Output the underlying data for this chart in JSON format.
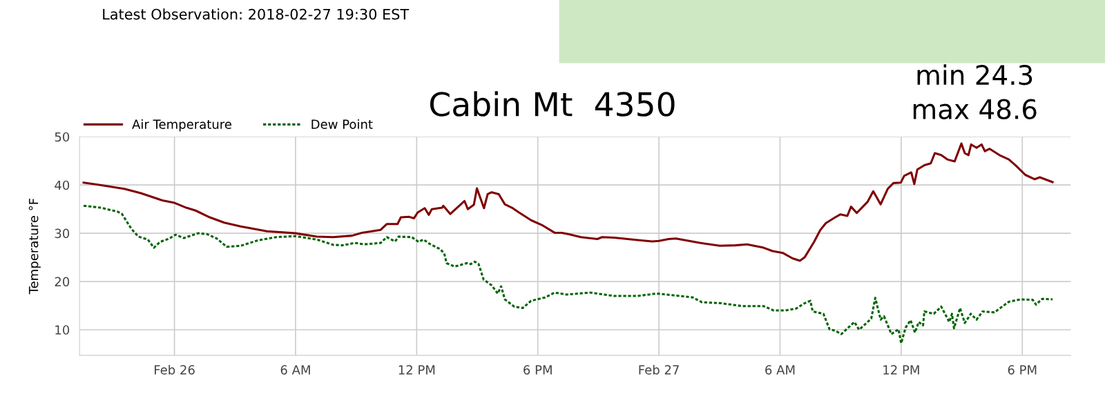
{
  "chart_data": {
    "type": "line",
    "title": "Cabin Mt  4350",
    "ylabel": "Temperature °F",
    "annotations": [
      "Latest Observation: 2018-02-27 19:30 EST",
      "min 24.3",
      "max 48.6"
    ],
    "xlim": [
      "2018-02-25T19:18",
      "2018-02-27T20:24"
    ],
    "ylim": [
      4.7,
      50
    ],
    "xticks": [
      {
        "value": "2018-02-26T00:00",
        "label": "Feb 26"
      },
      {
        "value": "2018-02-26T06:00",
        "label": "6 AM"
      },
      {
        "value": "2018-02-26T12:00",
        "label": "12 PM"
      },
      {
        "value": "2018-02-26T18:00",
        "label": "6 PM"
      },
      {
        "value": "2018-02-27T00:00",
        "label": "Feb 27"
      },
      {
        "value": "2018-02-27T06:00",
        "label": "6 AM"
      },
      {
        "value": "2018-02-27T12:00",
        "label": "12 PM"
      },
      {
        "value": "2018-02-27T18:00",
        "label": "6 PM"
      }
    ],
    "yticks": [
      10,
      20,
      30,
      40,
      50
    ],
    "grid": true,
    "legend": "top left",
    "marker": "none",
    "series": [
      {
        "name": "Air Temperature",
        "color": "#800000",
        "line_style": "solid",
        "x": [
          "2018-02-25T19:30",
          "2018-02-25T20:20",
          "2018-02-25T21:31",
          "2018-02-25T22:20",
          "2018-02-25T23:24",
          "2018-02-26T00:00",
          "2018-02-26T00:35",
          "2018-02-26T01:03",
          "2018-02-26T01:45",
          "2018-02-26T02:28",
          "2018-02-26T03:17",
          "2018-02-26T04:35",
          "2018-02-26T06:00",
          "2018-02-26T07:03",
          "2018-02-26T07:52",
          "2018-02-26T08:48",
          "2018-02-26T09:17",
          "2018-02-26T10:13",
          "2018-02-26T10:31",
          "2018-02-26T11:03",
          "2018-02-26T11:13",
          "2018-02-26T11:38",
          "2018-02-26T11:52",
          "2018-02-26T12:03",
          "2018-02-26T12:24",
          "2018-02-26T12:36",
          "2018-02-26T12:45",
          "2018-02-26T13:16",
          "2018-02-26T13:19",
          "2018-02-26T13:40",
          "2018-02-26T14:22",
          "2018-02-26T14:32",
          "2018-02-26T14:50",
          "2018-02-26T14:59",
          "2018-02-26T15:20",
          "2018-02-26T15:31",
          "2018-02-26T15:43",
          "2018-02-26T16:04",
          "2018-02-26T16:22",
          "2018-02-26T16:43",
          "2018-02-26T17:04",
          "2018-02-26T17:40",
          "2018-02-26T18:15",
          "2018-02-26T18:50",
          "2018-02-26T19:11",
          "2018-02-26T19:32",
          "2018-02-26T20:08",
          "2018-02-26T20:57",
          "2018-02-26T21:11",
          "2018-02-26T21:47",
          "2018-02-26T22:57",
          "2018-02-26T23:40",
          "2018-02-27T00:00",
          "2018-02-27T00:29",
          "2018-02-27T00:50",
          "2018-02-27T02:01",
          "2018-02-27T03:01",
          "2018-02-27T03:47",
          "2018-02-27T04:22",
          "2018-02-27T05:11",
          "2018-02-27T05:38",
          "2018-02-27T06:09",
          "2018-02-27T06:37",
          "2018-02-27T06:59",
          "2018-02-27T07:13",
          "2018-02-27T07:41",
          "2018-02-27T07:59",
          "2018-02-27T08:16",
          "2018-02-27T08:44",
          "2018-02-27T08:59",
          "2018-02-27T09:20",
          "2018-02-27T09:31",
          "2018-02-27T09:48",
          "2018-02-27T10:20",
          "2018-02-27T10:37",
          "2018-02-27T10:59",
          "2018-02-27T11:20",
          "2018-02-27T11:37",
          "2018-02-27T11:59",
          "2018-02-27T12:09",
          "2018-02-27T12:30",
          "2018-02-27T12:39",
          "2018-02-27T12:48",
          "2018-02-27T13:09",
          "2018-02-27T13:28",
          "2018-02-27T13:40",
          "2018-02-27T13:59",
          "2018-02-27T14:17",
          "2018-02-27T14:39",
          "2018-02-27T14:59",
          "2018-02-27T15:09",
          "2018-02-27T15:20",
          "2018-02-27T15:28",
          "2018-02-27T15:44",
          "2018-02-27T15:59",
          "2018-02-27T16:09",
          "2018-02-27T16:23",
          "2018-02-27T16:52",
          "2018-02-27T17:20",
          "2018-02-27T17:41",
          "2018-02-27T18:09",
          "2018-02-27T18:37",
          "2018-02-27T18:52",
          "2018-02-27T19:30"
        ],
        "values": [
          40.5,
          40.0,
          39.2,
          38.3,
          36.8,
          36.3,
          35.3,
          34.7,
          33.3,
          32.2,
          31.4,
          30.4,
          30.0,
          29.3,
          29.2,
          29.5,
          30.1,
          30.7,
          31.9,
          31.9,
          33.3,
          33.4,
          33.1,
          34.3,
          35.2,
          33.8,
          35.0,
          35.3,
          35.7,
          34.0,
          36.7,
          35.0,
          35.9,
          39.3,
          35.2,
          38.1,
          38.5,
          38.1,
          36.0,
          35.3,
          34.3,
          32.7,
          31.6,
          30.1,
          30.1,
          29.8,
          29.2,
          28.8,
          29.2,
          29.1,
          28.6,
          28.3,
          28.4,
          28.8,
          28.9,
          28.0,
          27.4,
          27.5,
          27.7,
          27.0,
          26.3,
          25.9,
          24.8,
          24.3,
          25.0,
          28.2,
          30.6,
          32.1,
          33.3,
          33.9,
          33.6,
          35.5,
          34.2,
          36.5,
          38.7,
          36.0,
          39.2,
          40.4,
          40.5,
          41.9,
          42.6,
          40.2,
          43.2,
          44.1,
          44.5,
          46.6,
          46.2,
          45.3,
          44.9,
          48.6,
          46.6,
          46.2,
          48.4,
          47.7,
          48.4,
          47.0,
          47.5,
          46.2,
          45.3,
          44.0,
          42.1,
          41.2,
          41.6,
          40.6
        ]
      },
      {
        "name": "Dew Point",
        "color": "#006400",
        "line_style": "dotted",
        "x": [
          "2018-02-25T19:30",
          "2018-02-25T20:20",
          "2018-02-25T21:10",
          "2018-02-25T21:24",
          "2018-02-25T21:52",
          "2018-02-25T22:13",
          "2018-02-25T22:41",
          "2018-02-25T22:59",
          "2018-02-25T23:17",
          "2018-02-25T23:45",
          "2018-02-26T00:03",
          "2018-02-26T00:28",
          "2018-02-26T01:10",
          "2018-02-26T01:38",
          "2018-02-26T02:06",
          "2018-02-26T02:35",
          "2018-02-26T03:17",
          "2018-02-26T04:07",
          "2018-02-26T05:03",
          "2018-02-26T06:00",
          "2018-02-26T07:03",
          "2018-02-26T07:52",
          "2018-02-26T08:20",
          "2018-02-26T08:56",
          "2018-02-26T09:24",
          "2018-02-26T10:13",
          "2018-02-26T10:31",
          "2018-02-26T10:56",
          "2018-02-26T11:06",
          "2018-02-26T11:45",
          "2018-02-26T12:06",
          "2018-02-26T12:20",
          "2018-02-26T12:41",
          "2018-02-26T13:10",
          "2018-02-26T13:22",
          "2018-02-26T13:29",
          "2018-02-26T13:53",
          "2018-02-26T14:29",
          "2018-02-26T14:40",
          "2018-02-26T14:53",
          "2018-02-26T15:04",
          "2018-02-26T15:19",
          "2018-02-26T15:43",
          "2018-02-26T16:01",
          "2018-02-26T16:11",
          "2018-02-26T16:22",
          "2018-02-26T16:50",
          "2018-02-26T17:15",
          "2018-02-26T17:40",
          "2018-02-26T18:22",
          "2018-02-26T18:50",
          "2018-02-26T19:25",
          "2018-02-26T20:36",
          "2018-02-26T21:47",
          "2018-02-26T22:57",
          "2018-02-26T23:53",
          "2018-02-27T00:50",
          "2018-02-27T01:40",
          "2018-02-27T02:08",
          "2018-02-27T03:04",
          "2018-02-27T04:08",
          "2018-02-27T05:11",
          "2018-02-27T05:41",
          "2018-02-27T06:16",
          "2018-02-27T06:48",
          "2018-02-27T07:13",
          "2018-02-27T07:30",
          "2018-02-27T07:37",
          "2018-02-27T08:09",
          "2018-02-27T08:27",
          "2018-02-27T08:44",
          "2018-02-27T09:02",
          "2018-02-27T09:41",
          "2018-02-27T09:55",
          "2018-02-27T10:31",
          "2018-02-27T10:43",
          "2018-02-27T10:59",
          "2018-02-27T11:09",
          "2018-02-27T11:31",
          "2018-02-27T11:52",
          "2018-02-27T12:00",
          "2018-02-27T12:13",
          "2018-02-27T12:28",
          "2018-02-27T12:41",
          "2018-02-27T12:52",
          "2018-02-27T13:05",
          "2018-02-27T13:09",
          "2018-02-27T13:37",
          "2018-02-27T13:59",
          "2018-02-27T14:23",
          "2018-02-27T14:31",
          "2018-02-27T14:37",
          "2018-02-27T14:55",
          "2018-02-27T15:09",
          "2018-02-27T15:27",
          "2018-02-27T15:44",
          "2018-02-27T16:02",
          "2018-02-27T16:37",
          "2018-02-27T17:20",
          "2018-02-27T17:55",
          "2018-02-27T18:31",
          "2018-02-27T18:41",
          "2018-02-27T18:59",
          "2018-02-27T19:30"
        ],
        "values": [
          35.7,
          35.3,
          34.5,
          34.0,
          30.9,
          29.3,
          28.7,
          27.0,
          28.2,
          28.9,
          29.7,
          29.0,
          30.0,
          29.8,
          28.9,
          27.2,
          27.4,
          28.5,
          29.2,
          29.4,
          28.7,
          27.6,
          27.5,
          28.0,
          27.7,
          28.0,
          29.2,
          28.3,
          29.3,
          29.2,
          28.2,
          28.7,
          27.7,
          26.7,
          25.8,
          23.8,
          23.1,
          23.8,
          23.6,
          24.1,
          23.6,
          20.4,
          19.2,
          17.5,
          19.0,
          16.3,
          14.8,
          14.5,
          16.0,
          16.7,
          17.7,
          17.3,
          17.7,
          17.0,
          17.0,
          17.5,
          17.1,
          16.7,
          15.7,
          15.5,
          14.9,
          14.9,
          14.0,
          14.0,
          14.4,
          15.5,
          16.0,
          13.8,
          13.3,
          10.1,
          9.8,
          9.1,
          11.6,
          10.0,
          12.3,
          16.6,
          12.1,
          12.8,
          9.1,
          10.1,
          7.2,
          10.4,
          12.0,
          9.4,
          11.6,
          10.9,
          13.8,
          13.3,
          14.8,
          11.6,
          13.3,
          10.3,
          14.5,
          11.4,
          13.3,
          12.1,
          13.8,
          13.6,
          15.8,
          16.3,
          16.2,
          15.2,
          16.4,
          16.3
        ]
      }
    ]
  }
}
